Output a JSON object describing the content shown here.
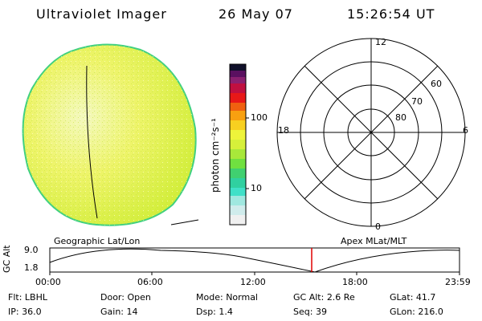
{
  "header": {
    "title": "Ultraviolet Imager",
    "date": "26 May 07",
    "time": "15:26:54 UT"
  },
  "colorbar": {
    "unit_label": "photon cm⁻²s⁻¹",
    "ticks": [
      "100",
      "10"
    ]
  },
  "polar": {
    "mlt_labels": {
      "top": "12",
      "bottom": "0",
      "left": "18",
      "right": "6"
    },
    "lat_labels": [
      "60",
      "70",
      "80"
    ]
  },
  "labels": {
    "left_panel": "Geographic Lat/Lon",
    "right_panel": "Apex MLat/MLT"
  },
  "timeline": {
    "ylabel": "GC Alt",
    "yticks": [
      "9.0",
      "1.8"
    ],
    "xticks": [
      "00:00",
      "06:00",
      "12:00",
      "18:00",
      "23:59"
    ],
    "marker_time": "15:26"
  },
  "status": {
    "row1": [
      {
        "key": "Flt:",
        "value": "LBHL"
      },
      {
        "key": "Door:",
        "value": "Open"
      },
      {
        "key": "Mode:",
        "value": "Normal"
      },
      {
        "key": "GC Alt:",
        "value": "2.6 Re"
      },
      {
        "key": "GLat:",
        "value": "41.7"
      }
    ],
    "row2": [
      {
        "key": "IP:",
        "value": "36.0"
      },
      {
        "key": "Gain:",
        "value": "14"
      },
      {
        "key": "Dsp:",
        "value": "1.4"
      },
      {
        "key": "Seq:",
        "value": "39"
      },
      {
        "key": "GLon:",
        "value": "216.0"
      }
    ]
  },
  "colors": {
    "disk_fill": "#e8f43a",
    "disk_edge": "#3fd07a",
    "marker": "#e00000"
  }
}
